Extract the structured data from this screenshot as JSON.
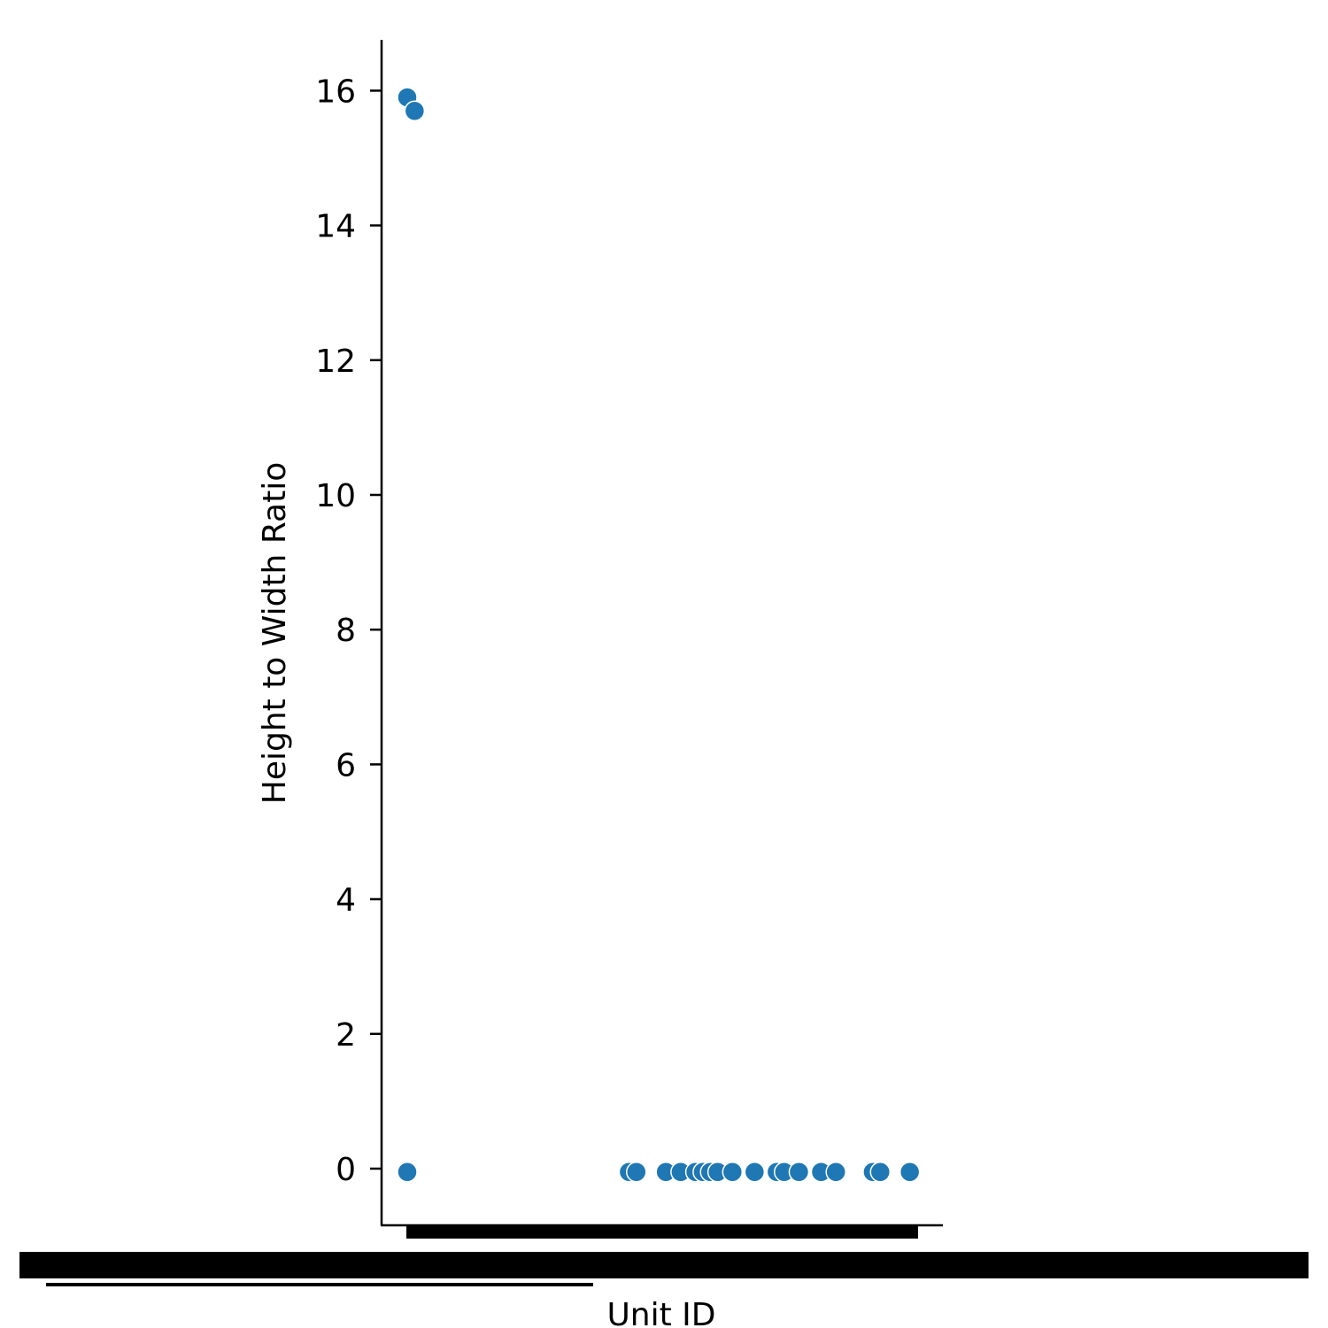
{
  "chart_data": {
    "type": "scatter",
    "title": "",
    "xlabel": "Unit ID",
    "ylabel": "Height to Width Ratio",
    "ylim": [
      -0.85,
      16.7
    ],
    "yticks": [
      0,
      2,
      4,
      6,
      8,
      10,
      12,
      14,
      16
    ],
    "ytick_labels": [
      "0",
      "2",
      "4",
      "6",
      "8",
      "10",
      "12",
      "14",
      "16"
    ],
    "x_axis": "categorical, unit IDs; tick labels overlap into an unreadable black band",
    "grid": false,
    "legend": "none",
    "marker_color": "#1f77b4",
    "points": [
      {
        "x_index": 0,
        "y": 15.9
      },
      {
        "x_index": 1,
        "y": 15.7
      },
      {
        "x_index": 0,
        "y": -0.05
      },
      {
        "x_index": 30,
        "y": -0.05
      },
      {
        "x_index": 31,
        "y": -0.05
      },
      {
        "x_index": 35,
        "y": -0.05
      },
      {
        "x_index": 37,
        "y": -0.05
      },
      {
        "x_index": 39,
        "y": -0.05
      },
      {
        "x_index": 40,
        "y": -0.05
      },
      {
        "x_index": 41,
        "y": -0.05
      },
      {
        "x_index": 42,
        "y": -0.05
      },
      {
        "x_index": 44,
        "y": -0.05
      },
      {
        "x_index": 47,
        "y": -0.05
      },
      {
        "x_index": 50,
        "y": -0.05
      },
      {
        "x_index": 51,
        "y": -0.05
      },
      {
        "x_index": 53,
        "y": -0.05
      },
      {
        "x_index": 56,
        "y": -0.05
      },
      {
        "x_index": 58,
        "y": -0.05
      },
      {
        "x_index": 63,
        "y": -0.05
      },
      {
        "x_index": 64,
        "y": -0.05
      },
      {
        "x_index": 68,
        "y": -0.05
      }
    ],
    "x_count": 70
  }
}
